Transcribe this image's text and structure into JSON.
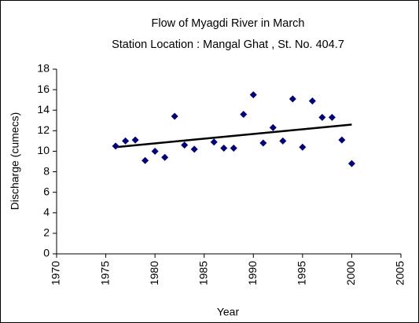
{
  "chart_data": {
    "type": "scatter",
    "title": "Flow of Myagdi River in March",
    "subtitle": "Station Location : Mangal Ghat , St. No. 404.7",
    "x_label": "Year",
    "y_label": "Discharge (cumecs)",
    "x": [
      1976,
      1977,
      1978,
      1979,
      1980,
      1981,
      1982,
      1983,
      1984,
      1986,
      1987,
      1988,
      1989,
      1990,
      1991,
      1992,
      1993,
      1994,
      1995,
      1996,
      1997,
      1998,
      1999,
      2000
    ],
    "values": [
      10.5,
      11.0,
      11.1,
      9.1,
      10.0,
      9.4,
      13.4,
      10.6,
      10.2,
      10.9,
      10.3,
      10.3,
      13.6,
      15.5,
      10.8,
      12.3,
      11.0,
      15.1,
      10.4,
      14.9,
      13.3,
      13.3,
      11.1,
      8.8
    ],
    "color": "#000080",
    "trendline": {
      "x": [
        1976,
        2000
      ],
      "values": [
        10.4,
        12.6
      ],
      "color": "#000000"
    },
    "xlim": [
      1970,
      2005
    ],
    "xticks": [
      1970,
      1975,
      1980,
      1985,
      1990,
      1995,
      2000,
      2005
    ],
    "ylim": [
      0,
      18
    ],
    "yticks": [
      0,
      2,
      4,
      6,
      8,
      10,
      12,
      14,
      16,
      18
    ],
    "grid": false
  }
}
